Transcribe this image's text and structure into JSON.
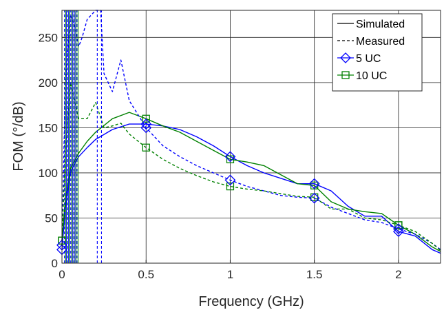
{
  "chart_data": {
    "type": "line",
    "xlabel": "Frequency (GHz)",
    "ylabel": "FOM (°/dB)",
    "xlim": [
      0,
      2.25
    ],
    "ylim": [
      0,
      280
    ],
    "x_ticks": [
      0,
      0.5,
      1,
      1.5,
      2
    ],
    "x_tick_labels": [
      "0",
      "0.5",
      "1",
      "1.5",
      "2"
    ],
    "y_ticks": [
      0,
      50,
      100,
      150,
      200,
      250
    ],
    "y_tick_labels": [
      "0",
      "50",
      "100",
      "150",
      "200",
      "250"
    ],
    "grid": true,
    "legend_position": "top-right",
    "legend": [
      {
        "label": "Simulated",
        "style": "solid",
        "color": "#000000"
      },
      {
        "label": "Measured",
        "style": "dashed",
        "color": "#000000"
      },
      {
        "label": "5 UC",
        "marker": "diamond",
        "color": "#0000ff"
      },
      {
        "label": "10 UC",
        "marker": "square",
        "color": "#008000"
      }
    ],
    "series": [
      {
        "color": "#0000ff",
        "style": "solid",
        "marker": "diamond",
        "x": [
          0.0,
          0.02,
          0.05,
          0.08,
          0.1,
          0.15,
          0.2,
          0.3,
          0.4,
          0.5,
          0.6,
          0.7,
          0.8,
          0.9,
          1.0,
          1.1,
          1.2,
          1.3,
          1.4,
          1.5,
          1.6,
          1.7,
          1.8,
          1.9,
          2.0,
          2.1,
          2.2,
          2.25
        ],
        "y": [
          15,
          60,
          100,
          112,
          118,
          128,
          137,
          148,
          154,
          154,
          152,
          148,
          140,
          130,
          118,
          108,
          100,
          94,
          88,
          88,
          80,
          63,
          52,
          52,
          35,
          30,
          15,
          11
        ]
      },
      {
        "color": "#008000",
        "style": "solid",
        "marker": "square",
        "x": [
          0.0,
          0.02,
          0.05,
          0.08,
          0.1,
          0.15,
          0.2,
          0.3,
          0.4,
          0.5,
          0.6,
          0.7,
          0.8,
          0.9,
          1.0,
          1.1,
          1.2,
          1.3,
          1.4,
          1.5,
          1.6,
          1.7,
          1.8,
          1.9,
          2.0,
          2.1,
          2.2,
          2.25
        ],
        "y": [
          25,
          70,
          105,
          115,
          122,
          135,
          145,
          160,
          167,
          160,
          152,
          145,
          135,
          125,
          115,
          112,
          108,
          98,
          88,
          86,
          68,
          60,
          57,
          55,
          42,
          32,
          18,
          13
        ]
      },
      {
        "color": "#0000ff",
        "style": "dashed",
        "marker": "diamond",
        "x": [
          0.0,
          0.02,
          0.05,
          0.08,
          0.1,
          0.12,
          0.15,
          0.2,
          0.23,
          0.25,
          0.3,
          0.35,
          0.4,
          0.45,
          0.5,
          0.55,
          0.6,
          0.7,
          0.8,
          0.9,
          1.0,
          1.1,
          1.2,
          1.3,
          1.4,
          1.5,
          1.6,
          1.7,
          1.8,
          1.9,
          2.0,
          2.1,
          2.2,
          2.25
        ],
        "y": [
          20,
          200,
          275,
          260,
          240,
          250,
          270,
          280,
          280,
          210,
          190,
          225,
          180,
          165,
          150,
          140,
          130,
          118,
          108,
          100,
          92,
          85,
          80,
          75,
          73,
          72,
          62,
          55,
          48,
          45,
          38,
          32,
          22,
          15
        ]
      },
      {
        "color": "#008000",
        "style": "dashed",
        "marker": "square",
        "x": [
          0.0,
          0.02,
          0.05,
          0.08,
          0.1,
          0.15,
          0.2,
          0.25,
          0.3,
          0.35,
          0.4,
          0.5,
          0.6,
          0.7,
          0.8,
          0.9,
          1.0,
          1.1,
          1.2,
          1.3,
          1.4,
          1.5,
          1.6,
          1.7,
          1.8,
          1.9,
          2.0,
          2.1,
          2.2,
          2.25
        ],
        "y": [
          25,
          120,
          200,
          175,
          160,
          160,
          178,
          150,
          152,
          155,
          143,
          128,
          115,
          105,
          97,
          90,
          85,
          82,
          80,
          77,
          74,
          73,
          60,
          60,
          50,
          48,
          42,
          35,
          22,
          14
        ]
      }
    ],
    "markers": {
      "5 UC": {
        "x": [
          0.0,
          0.5,
          1.0,
          1.5,
          2.0
        ],
        "sim": [
          15,
          154,
          118,
          88,
          35
        ],
        "meas": [
          20,
          150,
          92,
          72,
          38
        ]
      },
      "10 UC": {
        "x": [
          0.0,
          0.5,
          1.0,
          1.5,
          2.0
        ],
        "sim": [
          25,
          160,
          115,
          86,
          42
        ],
        "meas": [
          25,
          128,
          85,
          73,
          42
        ]
      }
    }
  }
}
